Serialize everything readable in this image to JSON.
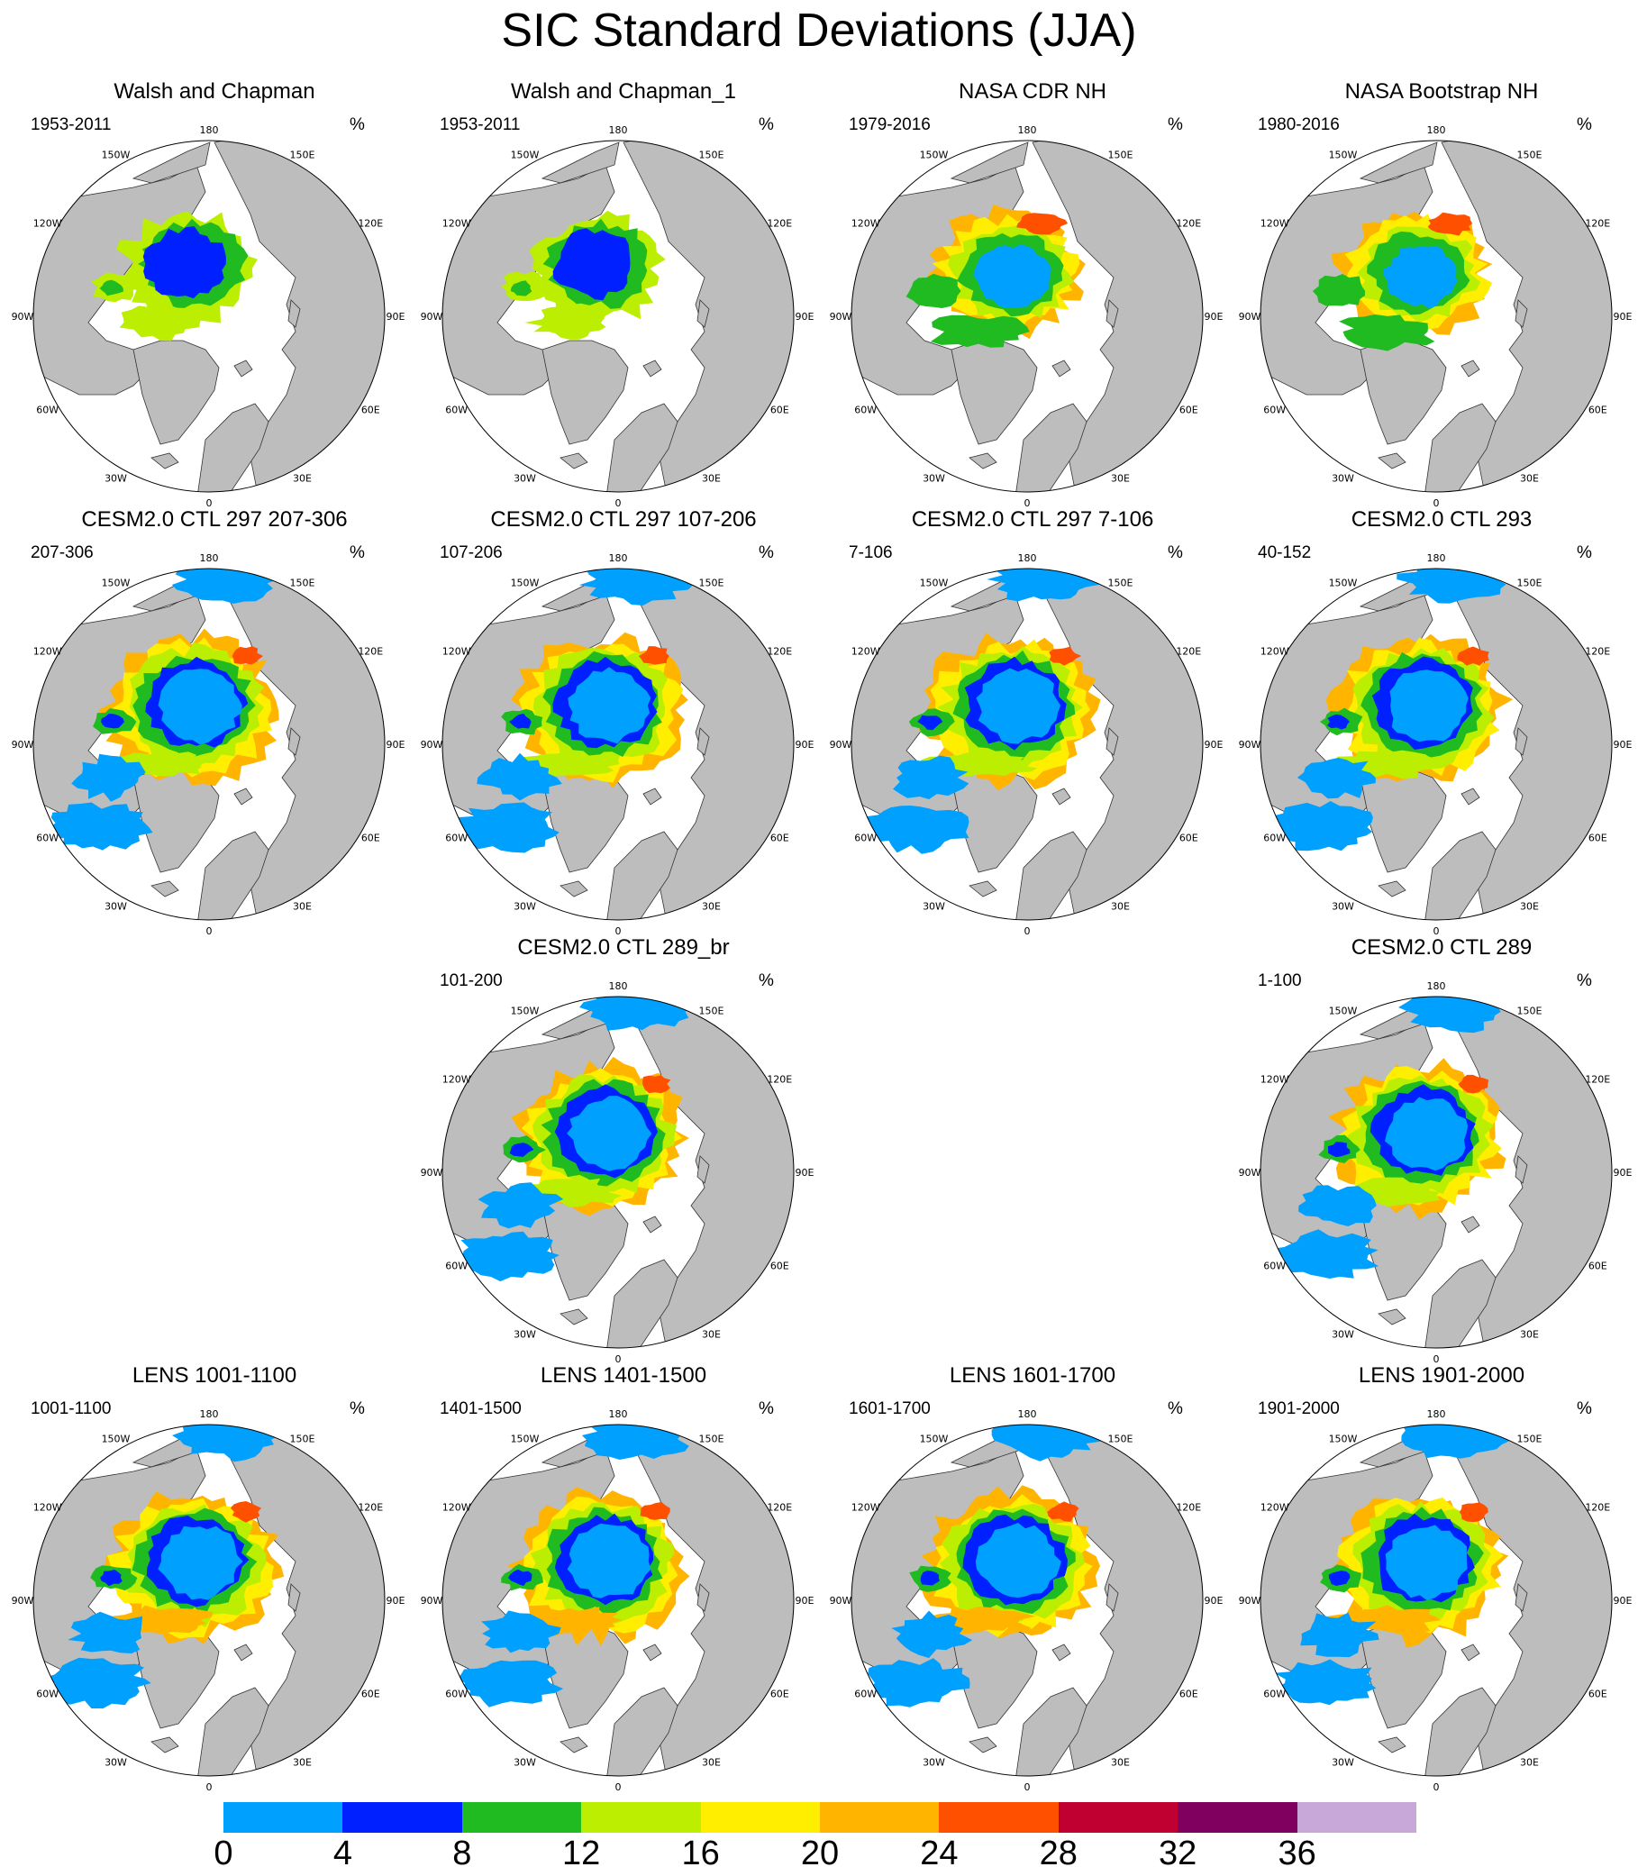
{
  "title": "SIC Standard Deviations (JJA)",
  "colors": {
    "land": "#bdbdbd",
    "ocean": "#ffffff",
    "coast": "#333333",
    "bins": [
      "#00a0ff",
      "#0020ff",
      "#20bb20",
      "#bbee00",
      "#ffee00",
      "#ffb400",
      "#ff5000",
      "#c00030",
      "#800060",
      "#c8a8d8"
    ]
  },
  "longitude_labels": [
    "180",
    "150E",
    "120E",
    "90E",
    "60E",
    "30E",
    "0",
    "30W",
    "60W",
    "90W",
    "120W",
    "150W"
  ],
  "colorbar": {
    "levels": [
      "0",
      "4",
      "8",
      "12",
      "16",
      "20",
      "24",
      "28",
      "32",
      "36"
    ]
  },
  "panels": [
    {
      "title": "Walsh and Chapman",
      "period": "1953-2011",
      "unit": "%",
      "style": "obs_wc"
    },
    {
      "title": "Walsh and Chapman_1",
      "period": "1953-2011",
      "unit": "%",
      "style": "obs_wc"
    },
    {
      "title": "NASA CDR NH",
      "period": "1979-2016",
      "unit": "%",
      "style": "obs_sat"
    },
    {
      "title": "NASA Bootstrap NH",
      "period": "1980-2016",
      "unit": "%",
      "style": "obs_sat"
    },
    {
      "title": "CESM2.0 CTL 297 207-306",
      "period": "207-306",
      "unit": "%",
      "style": "model"
    },
    {
      "title": "CESM2.0 CTL 297 107-206",
      "period": "107-206",
      "unit": "%",
      "style": "model"
    },
    {
      "title": "CESM2.0 CTL 297 7-106",
      "period": "7-106",
      "unit": "%",
      "style": "model"
    },
    {
      "title": "CESM2.0 CTL 293",
      "period": "40-152",
      "unit": "%",
      "style": "model"
    },
    {
      "title": "CESM2.0 CTL 289_br",
      "period": "101-200",
      "unit": "%",
      "style": "model"
    },
    {
      "title": "CESM2.0 CTL 289",
      "period": "1-100",
      "unit": "%",
      "style": "model"
    },
    {
      "title": "LENS 1001-1100",
      "period": "1001-1100",
      "unit": "%",
      "style": "lens"
    },
    {
      "title": "LENS 1401-1500",
      "period": "1401-1500",
      "unit": "%",
      "style": "lens"
    },
    {
      "title": "LENS 1601-1700",
      "period": "1601-1700",
      "unit": "%",
      "style": "lens"
    },
    {
      "title": "LENS 1901-2000",
      "period": "1901-2000",
      "unit": "%",
      "style": "lens"
    }
  ]
}
